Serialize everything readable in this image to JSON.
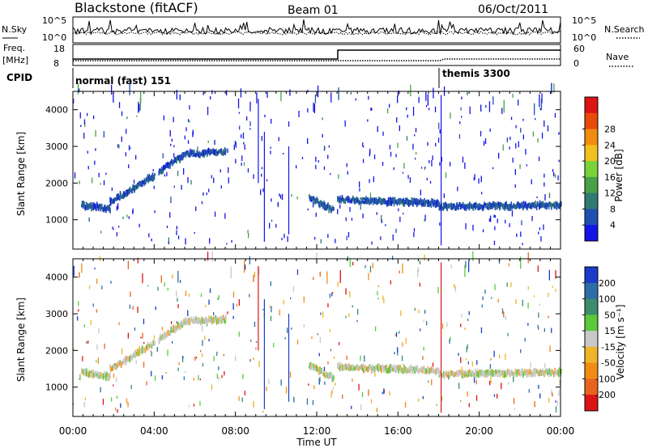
{
  "header": {
    "station": "Blackstone (fitACF)",
    "beam": "Beam 01",
    "date": "06/Oct/2011"
  },
  "noise_panel": {
    "left_label": "N.Sky",
    "right_label": "N.Search",
    "left_ticks": [
      "10^5",
      "10^0"
    ],
    "right_ticks": [
      "10^5",
      "10^0"
    ]
  },
  "freq_panel": {
    "left_label": "Freq.",
    "left_unit": "[MHz]",
    "right_label": "Nave",
    "left_ticks": [
      18,
      8
    ],
    "right_ticks": [
      60,
      0
    ]
  },
  "cpid": {
    "label": "CPID",
    "segments": [
      {
        "name": "normal (fast) 151",
        "start_hour": 0
      },
      {
        "name": "themis 3300",
        "start_hour": 18
      }
    ]
  },
  "chart_data": [
    {
      "type": "heatmap",
      "title": "Power",
      "ylabel": "Slant Range [km]",
      "xlim_hours": [
        0,
        24
      ],
      "ylim_km": [
        200,
        4500
      ],
      "y_ticks": [
        1000,
        2000,
        3000,
        4000
      ],
      "colorbar": {
        "label": "Power [dB]",
        "ticks": [
          4,
          8,
          12,
          16,
          20,
          24,
          28
        ],
        "colors": [
          "#1414e6",
          "#1f4fb0",
          "#2f7a72",
          "#4aa046",
          "#7ad23a",
          "#f0c020",
          "#f08c10",
          "#e84a0a",
          "#dc1414"
        ]
      },
      "echo_bands": [
        {
          "x_start": 0.4,
          "x_end": 1.8,
          "y_start": 1400,
          "y_end": 1300
        },
        {
          "x_start": 1.8,
          "x_end": 3.0,
          "y_start": 1500,
          "y_end": 1850
        },
        {
          "x_start": 3.0,
          "x_end": 4.0,
          "y_start": 1900,
          "y_end": 2200
        },
        {
          "x_start": 4.2,
          "x_end": 5.4,
          "y_start": 2300,
          "y_end": 2750
        },
        {
          "x_start": 5.4,
          "x_end": 7.5,
          "y_start": 2800,
          "y_end": 2850
        },
        {
          "x_start": 11.6,
          "x_end": 12.8,
          "y_start": 1600,
          "y_end": 1250
        },
        {
          "x_start": 13.0,
          "x_end": 18.0,
          "y_start": 1550,
          "y_end": 1450
        },
        {
          "x_start": 18.0,
          "x_end": 24.0,
          "y_start": 1350,
          "y_end": 1400
        }
      ]
    },
    {
      "type": "heatmap",
      "title": "Velocity",
      "ylabel": "Slant Range [km]",
      "xlabel": "Time UT",
      "xlim_hours": [
        0,
        24
      ],
      "ylim_km": [
        200,
        4500
      ],
      "y_ticks": [
        1000,
        2000,
        3000,
        4000
      ],
      "x_tick_labels": [
        "00:00",
        "04:00",
        "08:00",
        "12:00",
        "16:00",
        "20:00",
        "00:00"
      ],
      "colorbar": {
        "label": "Velocity [m s⁻¹]",
        "ticks": [
          200,
          100,
          50,
          15,
          -15,
          -50,
          -100,
          -200
        ],
        "colors": [
          "#1a3cc8",
          "#2e6ea8",
          "#3c8c6e",
          "#5cc83c",
          "#c8c8c8",
          "#f0b428",
          "#f08c14",
          "#e8641e",
          "#dc1414"
        ]
      }
    }
  ]
}
